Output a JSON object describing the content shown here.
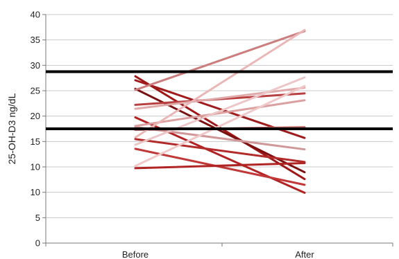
{
  "chart_data": {
    "type": "line",
    "title": "",
    "xlabel": "",
    "ylabel": "25-OH-D3 ng/dL",
    "categories": [
      "Before",
      "After"
    ],
    "y_ticks": [
      "0",
      "5",
      "10",
      "10",
      "15",
      "20",
      "25",
      "30",
      "35",
      "40"
    ],
    "ylim": [
      0,
      40
    ],
    "grid": true,
    "reference_lines": [
      {
        "value": 30,
        "color": "#000000"
      },
      {
        "value": 20,
        "color": "#000000"
      }
    ],
    "series": [
      {
        "values": [
          29.2,
          11.2
        ],
        "color": "#9e1818"
      },
      {
        "values": [
          28.5,
          18.4
        ],
        "color": "#a01c1c"
      },
      {
        "values": [
          27.0,
          12.4
        ],
        "color": "#7a1010"
      },
      {
        "values": [
          26.8,
          37.1
        ],
        "color": "#cc7e7e"
      },
      {
        "values": [
          24.2,
          26.2
        ],
        "color": "#b84040"
      },
      {
        "values": [
          23.5,
          27.2
        ],
        "color": "#e0aaaa"
      },
      {
        "values": [
          22.0,
          8.8
        ],
        "color": "#b22222"
      },
      {
        "values": [
          20.5,
          25.0
        ],
        "color": "#dca0a0"
      },
      {
        "values": [
          20.3,
          16.4
        ],
        "color": "#d09898"
      },
      {
        "values": [
          19.8,
          20.3
        ],
        "color": "#c87272"
      },
      {
        "values": [
          18.5,
          37.3
        ],
        "color": "#eab6b6"
      },
      {
        "values": [
          18.2,
          14.2
        ],
        "color": "#b32a2a"
      },
      {
        "values": [
          17.2,
          29.0
        ],
        "color": "#ecc6c6"
      },
      {
        "values": [
          16.5,
          10.2
        ],
        "color": "#c03838"
      },
      {
        "values": [
          13.5,
          27.5
        ],
        "color": "#f0c8c8"
      },
      {
        "values": [
          13.1,
          14.0
        ],
        "color": "#b02424"
      }
    ]
  }
}
